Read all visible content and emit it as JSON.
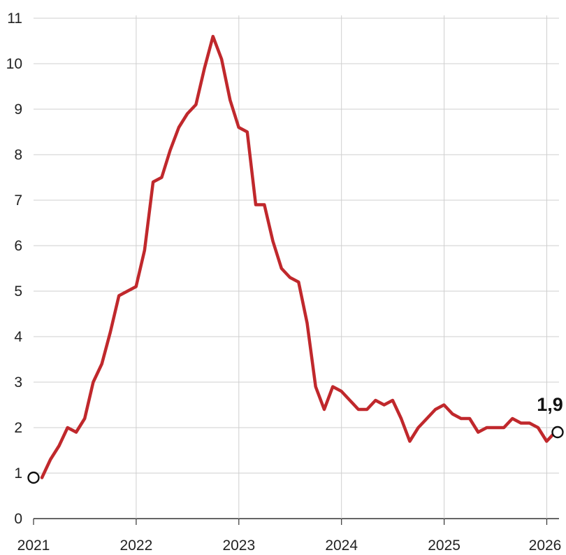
{
  "colors": {
    "line": "#c0282c",
    "grid": "#cfcfcf",
    "axis": "#333333",
    "text": "#222222"
  },
  "end_label": "1,9",
  "chart_data": {
    "type": "line",
    "title": "",
    "xlabel": "",
    "ylabel": "",
    "ylim": [
      0,
      11
    ],
    "y_ticks": [
      "0",
      "1",
      "2",
      "3",
      "4",
      "5",
      "6",
      "7",
      "8",
      "9",
      "10",
      "11"
    ],
    "x_ticks": [
      "2021",
      "2022",
      "2023",
      "2024",
      "2025",
      "2026"
    ],
    "grid": true,
    "series": [
      {
        "start": "2021-01",
        "frequency": "monthly",
        "values": [
          0.9,
          1.3,
          1.6,
          2.0,
          1.9,
          2.2,
          3.0,
          3.4,
          4.1,
          4.9,
          5.0,
          5.1,
          5.9,
          7.4,
          7.5,
          8.1,
          8.6,
          8.9,
          9.1,
          9.9,
          10.6,
          10.1,
          9.2,
          8.6,
          8.5,
          6.9,
          6.9,
          6.1,
          5.5,
          5.3,
          5.2,
          4.3,
          2.9,
          2.4,
          2.9,
          2.8,
          2.6,
          2.4,
          2.4,
          2.6,
          2.5,
          2.6,
          2.2,
          1.7,
          2.0,
          2.2,
          2.4,
          2.5,
          2.3,
          2.2,
          2.2,
          1.9,
          2.0,
          2.0,
          2.0,
          2.2,
          2.1,
          2.1,
          2.0,
          1.7,
          1.9
        ]
      }
    ],
    "markers": [
      {
        "date": "2021-01",
        "value": 0.9
      },
      {
        "date": "2026-01",
        "value": 1.9,
        "label": "1,9"
      }
    ]
  }
}
